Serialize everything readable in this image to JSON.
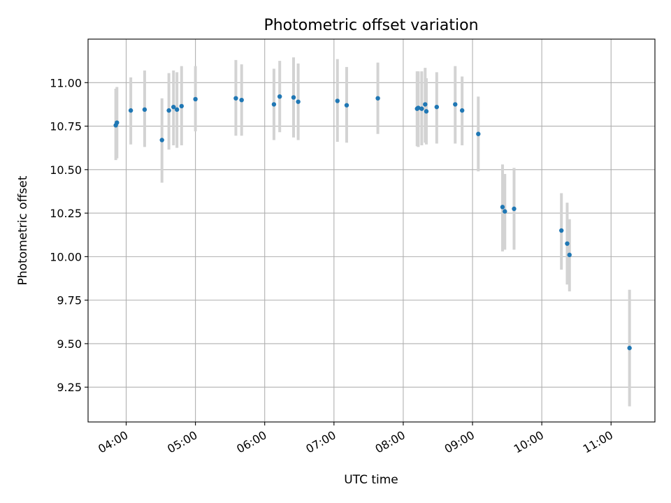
{
  "chart_data": {
    "type": "scatter",
    "title": "Photometric offset variation",
    "xlabel": "UTC time",
    "ylabel": "Photometric offset",
    "x_axis": "time",
    "xlim": [
      "03:27",
      "11:38"
    ],
    "ylim": [
      9.05,
      11.25
    ],
    "xticks": [
      "04:00",
      "05:00",
      "06:00",
      "07:00",
      "08:00",
      "09:00",
      "10:00",
      "11:00"
    ],
    "yticks": [
      9.25,
      9.5,
      9.75,
      10.0,
      10.25,
      10.5,
      10.75,
      11.0
    ],
    "ytick_labels": [
      "9.25",
      "9.50",
      "9.75",
      "10.00",
      "10.25",
      "10.50",
      "10.75",
      "11.00"
    ],
    "grid": true,
    "point_color": "#1f77b4",
    "errorbar_color": "#d3d3d3",
    "points": [
      {
        "x": "03:51",
        "y": 10.755,
        "ylow": 10.555,
        "yhigh": 10.965
      },
      {
        "x": "03:52",
        "y": 10.77,
        "ylow": 10.565,
        "yhigh": 10.975
      },
      {
        "x": "04:04",
        "y": 10.84,
        "ylow": 10.645,
        "yhigh": 11.03
      },
      {
        "x": "04:16",
        "y": 10.845,
        "ylow": 10.63,
        "yhigh": 11.07
      },
      {
        "x": "04:31",
        "y": 10.67,
        "ylow": 10.425,
        "yhigh": 10.91
      },
      {
        "x": "04:37",
        "y": 10.84,
        "ylow": 10.615,
        "yhigh": 11.055
      },
      {
        "x": "04:41",
        "y": 10.86,
        "ylow": 10.64,
        "yhigh": 11.07
      },
      {
        "x": "04:44",
        "y": 10.845,
        "ylow": 10.625,
        "yhigh": 11.06
      },
      {
        "x": "04:48",
        "y": 10.865,
        "ylow": 10.64,
        "yhigh": 11.095
      },
      {
        "x": "05:00",
        "y": 10.905,
        "ylow": 10.72,
        "yhigh": 11.095
      },
      {
        "x": "05:35",
        "y": 10.91,
        "ylow": 10.695,
        "yhigh": 11.13
      },
      {
        "x": "05:40",
        "y": 10.9,
        "ylow": 10.695,
        "yhigh": 11.105
      },
      {
        "x": "06:08",
        "y": 10.875,
        "ylow": 10.67,
        "yhigh": 11.08
      },
      {
        "x": "06:13",
        "y": 10.92,
        "ylow": 10.715,
        "yhigh": 11.125
      },
      {
        "x": "06:25",
        "y": 10.915,
        "ylow": 10.685,
        "yhigh": 11.145
      },
      {
        "x": "06:29",
        "y": 10.89,
        "ylow": 10.67,
        "yhigh": 11.11
      },
      {
        "x": "07:03",
        "y": 10.895,
        "ylow": 10.66,
        "yhigh": 11.135
      },
      {
        "x": "07:11",
        "y": 10.87,
        "ylow": 10.655,
        "yhigh": 11.09
      },
      {
        "x": "07:38",
        "y": 10.91,
        "ylow": 10.705,
        "yhigh": 11.115
      },
      {
        "x": "08:12",
        "y": 10.85,
        "ylow": 10.635,
        "yhigh": 11.065
      },
      {
        "x": "08:13",
        "y": 10.855,
        "ylow": 10.63,
        "yhigh": 11.065
      },
      {
        "x": "08:16",
        "y": 10.85,
        "ylow": 10.64,
        "yhigh": 11.065
      },
      {
        "x": "08:19",
        "y": 10.875,
        "ylow": 10.655,
        "yhigh": 11.085
      },
      {
        "x": "08:20",
        "y": 10.835,
        "ylow": 10.645,
        "yhigh": 11.025
      },
      {
        "x": "08:29",
        "y": 10.86,
        "ylow": 10.65,
        "yhigh": 11.06
      },
      {
        "x": "08:45",
        "y": 10.875,
        "ylow": 10.65,
        "yhigh": 11.095
      },
      {
        "x": "08:51",
        "y": 10.84,
        "ylow": 10.64,
        "yhigh": 11.035
      },
      {
        "x": "09:05",
        "y": 10.705,
        "ylow": 10.49,
        "yhigh": 10.92
      },
      {
        "x": "09:26",
        "y": 10.285,
        "ylow": 10.03,
        "yhigh": 10.53
      },
      {
        "x": "09:28",
        "y": 10.26,
        "ylow": 10.04,
        "yhigh": 10.475
      },
      {
        "x": "09:36",
        "y": 10.275,
        "ylow": 10.04,
        "yhigh": 10.51
      },
      {
        "x": "10:17",
        "y": 10.15,
        "ylow": 9.925,
        "yhigh": 10.365
      },
      {
        "x": "10:22",
        "y": 10.075,
        "ylow": 9.84,
        "yhigh": 10.31
      },
      {
        "x": "10:24",
        "y": 10.01,
        "ylow": 9.8,
        "yhigh": 10.215
      },
      {
        "x": "11:16",
        "y": 9.475,
        "ylow": 9.14,
        "yhigh": 9.81
      }
    ]
  }
}
